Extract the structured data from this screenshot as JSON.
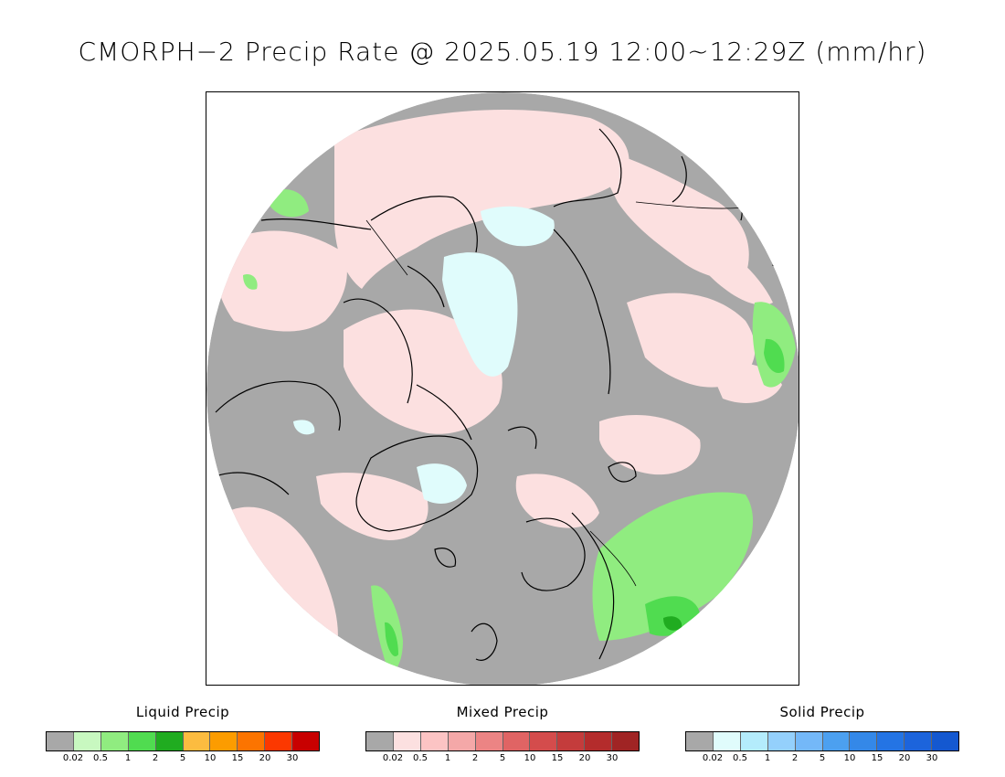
{
  "title": "CMORPH−2 Precip Rate @ 2025.05.19 12:00~12:29Z (mm/hr)",
  "map": {
    "projection": "north-polar-stereographic",
    "background_color": "#a8a8a8"
  },
  "legends": [
    {
      "title": "Liquid Precip",
      "colors": [
        "#a8a8a8",
        "#c8f8c0",
        "#90ec80",
        "#50dc50",
        "#20ac20",
        "#fcbc40",
        "#fc9c00",
        "#fc7400",
        "#fc3800",
        "#c80000"
      ],
      "ticks": [
        "0.02",
        "0.5",
        "1",
        "2",
        "5",
        "10",
        "15",
        "20",
        "30"
      ]
    },
    {
      "title": "Mixed Precip",
      "colors": [
        "#a8a8a8",
        "#fce0e0",
        "#fcc4c4",
        "#f4a8a8",
        "#ec8484",
        "#e06464",
        "#d44c4c",
        "#c43c3c",
        "#b42c2c",
        "#a02424"
      ],
      "ticks": [
        "0.02",
        "0.5",
        "1",
        "2",
        "5",
        "10",
        "15",
        "20",
        "30"
      ]
    },
    {
      "title": "Solid Precip",
      "colors": [
        "#a8a8a8",
        "#e0fcfc",
        "#b4ecfc",
        "#94d0fc",
        "#74b8f8",
        "#4ca0f0",
        "#3488e8",
        "#2474e4",
        "#1c64dc",
        "#1458d0"
      ],
      "ticks": [
        "0.02",
        "0.5",
        "1",
        "2",
        "5",
        "10",
        "15",
        "20",
        "30"
      ]
    }
  ]
}
